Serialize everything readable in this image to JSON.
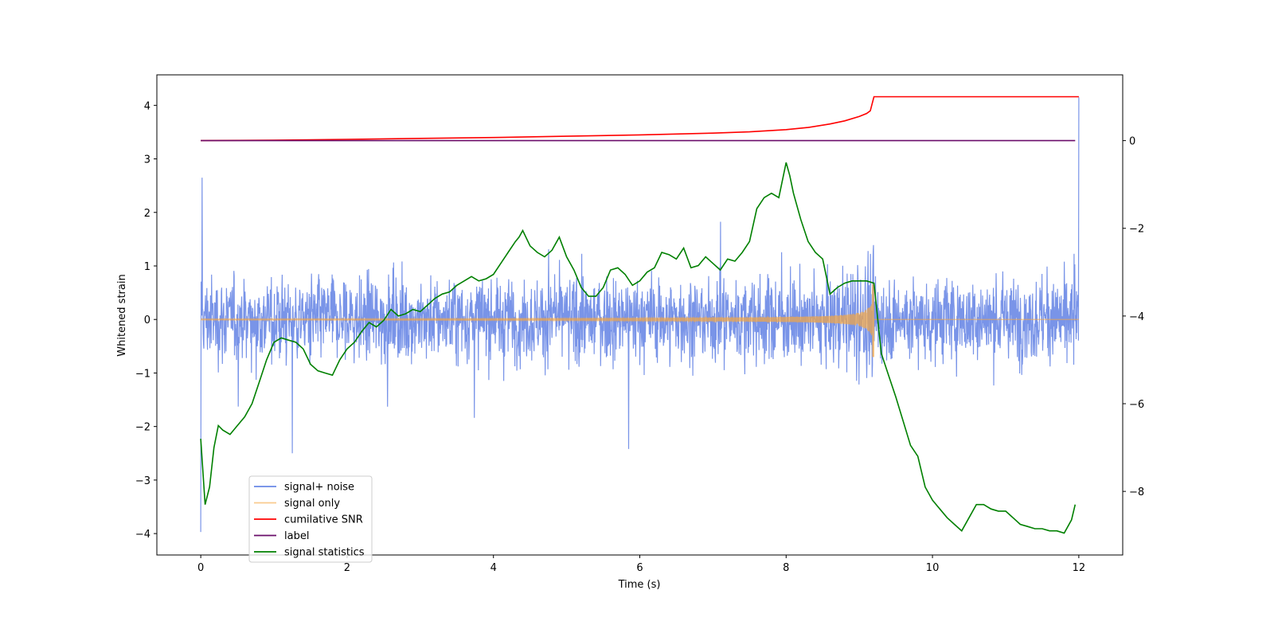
{
  "chart_data": {
    "type": "line",
    "title": "",
    "xlabel": "Time (s)",
    "ylabel": "Whitened strain",
    "y2label": "",
    "xlim": [
      -0.6,
      12.6
    ],
    "ylim": [
      -4.4,
      4.57
    ],
    "y2lim": [
      -9.45,
      1.5
    ],
    "xticks": [
      0,
      2,
      4,
      6,
      8,
      10,
      12
    ],
    "yticks": [
      -4,
      -3,
      -2,
      -1,
      0,
      1,
      2,
      3,
      4
    ],
    "y2ticks": [
      -8,
      -6,
      -4,
      -2,
      0
    ],
    "xtick_labels": [
      "0",
      "2",
      "4",
      "6",
      "8",
      "10",
      "12"
    ],
    "ytick_labels": [
      "−4",
      "−3",
      "−2",
      "−1",
      "0",
      "1",
      "2",
      "3",
      "4"
    ],
    "y2tick_labels": [
      "−8",
      "−6",
      "−4",
      "−2",
      "0"
    ],
    "legend_position": "lower-left",
    "series": [
      {
        "name": "signal+ noise",
        "axis": "left",
        "color": "#6a88e6",
        "noise_std": 0.55,
        "t_start": 0,
        "t_end": 12,
        "notable_points": [
          {
            "t": 0.0,
            "v": -3.97
          },
          {
            "t": 0.02,
            "v": 2.65
          },
          {
            "t": 1.25,
            "v": -2.5
          },
          {
            "t": 5.85,
            "v": -2.42
          },
          {
            "t": 12.0,
            "v": 4.15
          }
        ]
      },
      {
        "name": "signal only",
        "axis": "left",
        "color": "#f5a742",
        "t_start": 0,
        "t_end": 12,
        "merger_time": 9.2,
        "peak_amplitude": 0.55
      },
      {
        "name": "cumilative SNR",
        "axis": "right",
        "color": "#ff0000",
        "x": [
          0,
          1,
          2,
          3,
          4,
          5,
          6,
          6.5,
          7,
          7.5,
          8,
          8.3,
          8.6,
          8.8,
          9.0,
          9.1,
          9.15,
          9.2,
          12
        ],
        "values": [
          0,
          0.01,
          0.03,
          0.05,
          0.07,
          0.1,
          0.13,
          0.15,
          0.17,
          0.2,
          0.25,
          0.3,
          0.38,
          0.45,
          0.55,
          0.62,
          0.68,
          1.0,
          1.0
        ]
      },
      {
        "name": "label",
        "axis": "right",
        "color": "#6a0d6a",
        "x": [
          0,
          11.95
        ],
        "values": [
          0,
          0
        ]
      },
      {
        "name": "signal statistics",
        "axis": "right",
        "color": "#008000",
        "x": [
          0.0,
          0.06,
          0.12,
          0.18,
          0.24,
          0.3,
          0.4,
          0.5,
          0.6,
          0.7,
          0.8,
          0.9,
          1.0,
          1.1,
          1.2,
          1.3,
          1.4,
          1.5,
          1.6,
          1.7,
          1.8,
          1.9,
          2.0,
          2.1,
          2.2,
          2.3,
          2.4,
          2.5,
          2.6,
          2.7,
          2.8,
          2.9,
          3.0,
          3.1,
          3.2,
          3.3,
          3.4,
          3.5,
          3.6,
          3.7,
          3.8,
          3.9,
          4.0,
          4.1,
          4.2,
          4.3,
          4.35,
          4.4,
          4.5,
          4.6,
          4.7,
          4.8,
          4.9,
          5.0,
          5.1,
          5.2,
          5.3,
          5.4,
          5.5,
          5.6,
          5.7,
          5.8,
          5.9,
          6.0,
          6.1,
          6.2,
          6.3,
          6.4,
          6.5,
          6.6,
          6.7,
          6.8,
          6.9,
          7.0,
          7.1,
          7.2,
          7.3,
          7.4,
          7.5,
          7.6,
          7.7,
          7.8,
          7.9,
          8.0,
          8.05,
          8.1,
          8.2,
          8.3,
          8.4,
          8.5,
          8.6,
          8.7,
          8.8,
          8.9,
          9.0,
          9.1,
          9.2,
          9.3,
          9.4,
          9.5,
          9.6,
          9.7,
          9.8,
          9.9,
          10.0,
          10.1,
          10.2,
          10.3,
          10.4,
          10.5,
          10.6,
          10.7,
          10.8,
          10.9,
          11.0,
          11.1,
          11.2,
          11.3,
          11.4,
          11.5,
          11.6,
          11.7,
          11.8,
          11.9,
          11.95
        ],
        "values": [
          -6.8,
          -8.3,
          -7.9,
          -7.0,
          -6.5,
          -6.6,
          -6.7,
          -6.5,
          -6.3,
          -6.0,
          -5.5,
          -5.0,
          -4.6,
          -4.5,
          -4.55,
          -4.6,
          -4.75,
          -5.1,
          -5.25,
          -5.3,
          -5.35,
          -5.0,
          -4.75,
          -4.6,
          -4.35,
          -4.15,
          -4.25,
          -4.1,
          -3.85,
          -4.0,
          -3.95,
          -3.85,
          -3.9,
          -3.75,
          -3.6,
          -3.5,
          -3.45,
          -3.3,
          -3.2,
          -3.1,
          -3.2,
          -3.15,
          -3.05,
          -2.8,
          -2.55,
          -2.3,
          -2.2,
          -2.05,
          -2.4,
          -2.55,
          -2.65,
          -2.5,
          -2.2,
          -2.65,
          -2.95,
          -3.35,
          -3.55,
          -3.55,
          -3.35,
          -2.95,
          -2.9,
          -3.05,
          -3.3,
          -3.2,
          -3.0,
          -2.9,
          -2.55,
          -2.6,
          -2.7,
          -2.45,
          -2.9,
          -2.85,
          -2.65,
          -2.8,
          -2.95,
          -2.7,
          -2.75,
          -2.55,
          -2.3,
          -1.55,
          -1.3,
          -1.2,
          -1.3,
          -0.5,
          -0.8,
          -1.2,
          -1.8,
          -2.3,
          -2.55,
          -2.7,
          -3.5,
          -3.35,
          -3.25,
          -3.2,
          -3.2,
          -3.2,
          -3.25,
          -4.85,
          -5.35,
          -5.85,
          -6.4,
          -6.95,
          -7.2,
          -7.9,
          -8.2,
          -8.4,
          -8.6,
          -8.75,
          -8.9,
          -8.6,
          -8.3,
          -8.3,
          -8.4,
          -8.45,
          -8.45,
          -8.6,
          -8.75,
          -8.8,
          -8.85,
          -8.85,
          -8.9,
          -8.9,
          -8.95,
          -8.65,
          -8.3
        ]
      }
    ]
  }
}
